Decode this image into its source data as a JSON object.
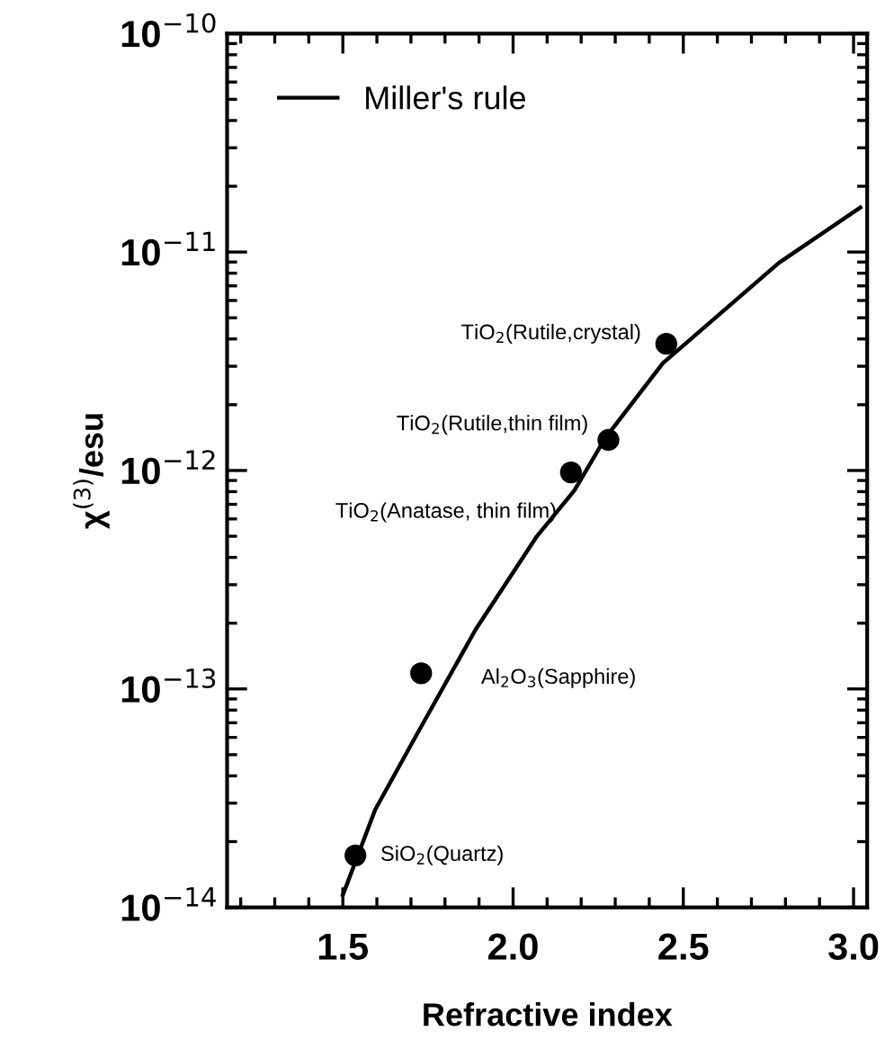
{
  "chart_data": {
    "type": "scatter",
    "xlabel": "Refractive index",
    "ylabel": "χ$^{(3)}$/esu",
    "log": "y",
    "xlim": [
      1.16,
      3.04
    ],
    "ylim": [
      1e-14,
      1e-10
    ],
    "xticks": [
      {
        "value": 1.5,
        "label": "1.5"
      },
      {
        "value": 2.0,
        "label": "2.0"
      },
      {
        "value": 2.5,
        "label": "2.5"
      },
      {
        "value": 3.0,
        "label": "3.0"
      }
    ],
    "yticks": [
      {
        "value": 1e-14,
        "label": "10$^{−14}$"
      },
      {
        "value": 1e-13,
        "label": "10$^{−13}$"
      },
      {
        "value": 1e-12,
        "label": "10$^{−12}$"
      },
      {
        "value": 1e-11,
        "label": "10$^{−11}$"
      },
      {
        "value": 1e-10,
        "label": "10$^{−10}$"
      }
    ],
    "legend": "top left",
    "grid": false,
    "series": [
      {
        "type": "line",
        "name": "Miller's rule",
        "color": "#000000",
        "marker": "none",
        "line_style": "solid",
        "x": [
          1.5,
          1.595,
          1.72,
          1.89,
          2.07,
          2.18,
          2.27,
          2.44,
          2.78,
          3.02
        ],
        "values": [
          1.14e-14,
          2.8e-14,
          6.3e-14,
          1.87e-13,
          5e-13,
          8.1e-13,
          1.4e-12,
          3.1e-12,
          8.9e-12,
          1.6e-11
        ]
      },
      {
        "color": "#000000",
        "marker": "circle",
        "x": [
          1.537,
          1.73,
          2.17,
          2.28,
          2.45
        ],
        "values": [
          1.73e-14,
          1.18e-13,
          9.8e-13,
          1.38e-12,
          3.8e-12
        ]
      }
    ],
    "annotations": [
      {
        "text": "SiO$_{2}$(Quartz)",
        "x": 1.537,
        "y": 1.73e-14
      },
      {
        "text": "Al$_{2}$O$_{3}$(Sapphire)",
        "x": 1.73,
        "y": 1.18e-13
      },
      {
        "text": "TiO$_{2}$(Anatase, thin film)",
        "x": 2.17,
        "y": 9.8e-13
      },
      {
        "text": "TiO$_{2}$(Rutile,thin film)",
        "x": 2.28,
        "y": 1.38e-12
      },
      {
        "text": "TiO$_{2}$(Rutile,crystal)",
        "x": 2.45,
        "y": 3.8e-12
      }
    ]
  }
}
